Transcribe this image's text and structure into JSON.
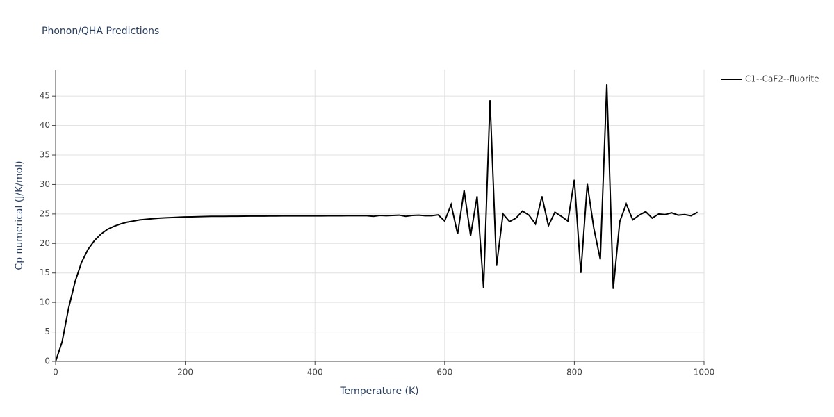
{
  "chart_data": {
    "type": "line",
    "title": "Phonon/QHA Predictions",
    "x_label": "Temperature (K)",
    "y_label": "Cp numerical (J/K/mol)",
    "x": [
      0,
      10,
      20,
      30,
      40,
      50,
      60,
      70,
      80,
      90,
      100,
      110,
      120,
      130,
      140,
      150,
      160,
      170,
      180,
      190,
      200,
      210,
      220,
      230,
      240,
      250,
      260,
      270,
      280,
      290,
      300,
      310,
      320,
      330,
      340,
      350,
      360,
      370,
      380,
      390,
      400,
      410,
      420,
      430,
      440,
      450,
      460,
      470,
      480,
      490,
      500,
      510,
      520,
      530,
      540,
      550,
      560,
      570,
      580,
      590,
      600,
      610,
      620,
      630,
      640,
      650,
      660,
      670,
      680,
      690,
      700,
      710,
      720,
      730,
      740,
      750,
      760,
      770,
      780,
      790,
      800,
      810,
      820,
      830,
      840,
      850,
      860,
      870,
      880,
      890,
      900,
      910,
      920,
      930,
      940,
      950,
      960,
      970,
      980,
      990
    ],
    "series": [
      {
        "name": "C1--CaF2--fluorite",
        "color": "#000000",
        "values": [
          0,
          3.3,
          9,
          13.5,
          16.8,
          19,
          20.5,
          21.6,
          22.4,
          22.9,
          23.3,
          23.6,
          23.8,
          24.0,
          24.1,
          24.2,
          24.3,
          24.35,
          24.4,
          24.45,
          24.5,
          24.52,
          24.55,
          24.58,
          24.6,
          24.6,
          24.6,
          24.62,
          24.62,
          24.63,
          24.64,
          24.65,
          24.65,
          24.66,
          24.66,
          24.67,
          24.67,
          24.67,
          24.68,
          24.68,
          24.68,
          24.68,
          24.69,
          24.69,
          24.69,
          24.7,
          24.7,
          24.7,
          24.7,
          24.6,
          24.75,
          24.7,
          24.75,
          24.8,
          24.6,
          24.75,
          24.8,
          24.7,
          24.7,
          24.85,
          23.8,
          26.6,
          21.6,
          29,
          21.3,
          28,
          12.5,
          44.3,
          16.2,
          25,
          23.7,
          24.3,
          25.5,
          24.8,
          23.3,
          28,
          23,
          25.3,
          24.6,
          23.8,
          30.8,
          15,
          30.1,
          22.6,
          17.3,
          47,
          12.3,
          23.7,
          26.7,
          24,
          24.8,
          25.4,
          24.3,
          25,
          24.9,
          25.2,
          24.8,
          24.9,
          24.7,
          25.3
        ]
      }
    ],
    "xlim": [
      0,
      1000
    ],
    "xticks": [
      0,
      200,
      400,
      600,
      800,
      1000
    ],
    "ylim": [
      0,
      49.5
    ],
    "yticks": [
      0,
      5,
      10,
      15,
      20,
      25,
      30,
      35,
      40,
      45
    ],
    "grid": true,
    "legend": "right"
  }
}
